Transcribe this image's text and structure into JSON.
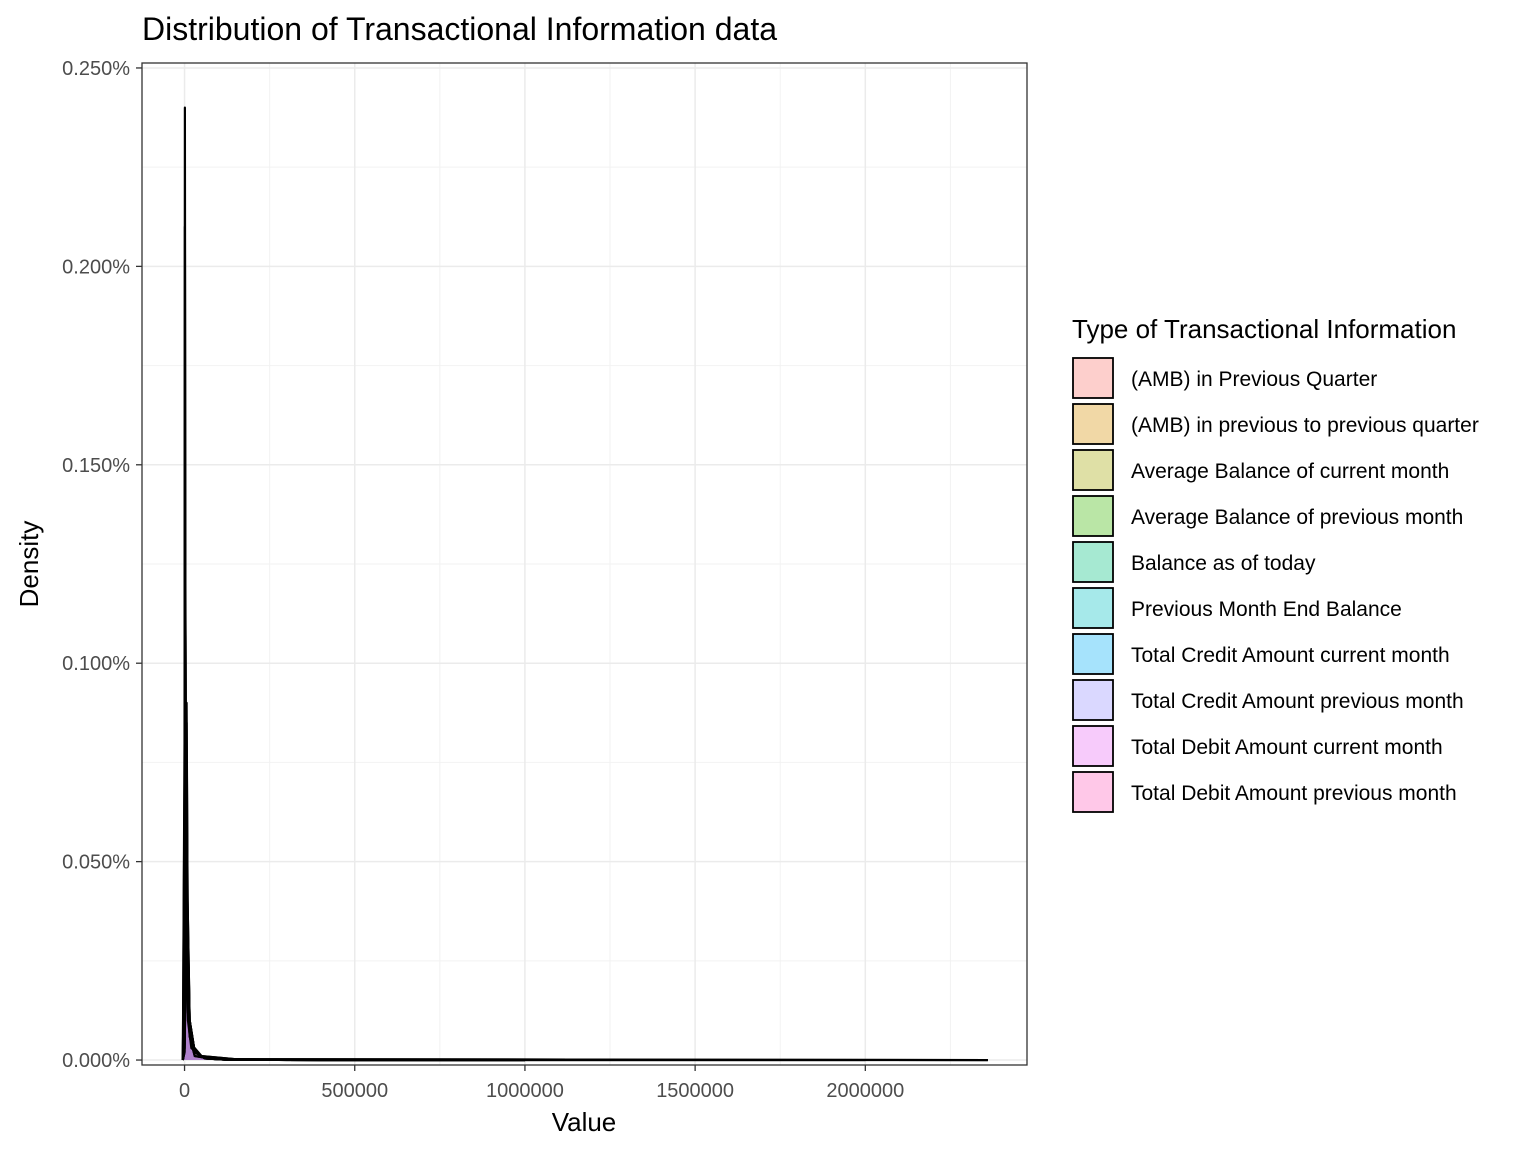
{
  "chart_data": {
    "type": "area",
    "title": "Distribution of Transactional Information data",
    "xlabel": "Value",
    "ylabel": "Density",
    "xlim": [
      -125000,
      2475000
    ],
    "ylim": [
      -1.25e-05,
      0.0025125
    ],
    "x_ticks": [
      0,
      500000,
      1000000,
      1500000,
      2000000
    ],
    "x_tick_labels": [
      "0",
      "500000",
      "1000000",
      "1500000",
      "2000000"
    ],
    "y_ticks": [
      0,
      0.0005,
      0.001,
      0.0015,
      0.002,
      0.0025
    ],
    "y_tick_labels": [
      "0.000%",
      "0.050%",
      "0.100%",
      "0.150%",
      "0.200%",
      "0.250%"
    ],
    "grid": true,
    "legend_position": "right",
    "legend_title": "Type of Transactional Information",
    "series": [
      {
        "name": "(AMB) in Previous Quarter",
        "color": "#F8766D",
        "points": [
          [
            -5000,
            0
          ],
          [
            0,
            2e-05
          ],
          [
            3000,
            0.0002
          ],
          [
            6000,
            0.0006
          ],
          [
            9000,
            0.0003
          ],
          [
            15000,
            8e-05
          ],
          [
            30000,
            2e-05
          ],
          [
            60000,
            4e-06
          ],
          [
            120000,
            1e-06
          ],
          [
            400000,
            0
          ],
          [
            1000000,
            0
          ]
        ]
      },
      {
        "name": "(AMB) in previous to previous quarter",
        "color": "#D89000",
        "points": [
          [
            -5000,
            0
          ],
          [
            0,
            2e-05
          ],
          [
            3000,
            0.0002
          ],
          [
            6000,
            0.00055
          ],
          [
            9000,
            0.0003
          ],
          [
            15000,
            8e-05
          ],
          [
            30000,
            2e-05
          ],
          [
            60000,
            4e-06
          ],
          [
            120000,
            1e-06
          ],
          [
            400000,
            0
          ],
          [
            1000000,
            0
          ]
        ]
      },
      {
        "name": "Average Balance of current month",
        "color": "#A3A500",
        "points": [
          [
            -5000,
            0
          ],
          [
            0,
            3e-05
          ],
          [
            3000,
            0.0003
          ],
          [
            6000,
            0.0007
          ],
          [
            9000,
            0.00035
          ],
          [
            15000,
            0.0001
          ],
          [
            30000,
            2e-05
          ],
          [
            60000,
            4e-06
          ],
          [
            120000,
            1e-06
          ],
          [
            400000,
            0
          ],
          [
            1000000,
            0
          ]
        ]
      },
      {
        "name": "Average Balance of previous month",
        "color": "#39B600",
        "points": [
          [
            -5000,
            0
          ],
          [
            0,
            3e-05
          ],
          [
            3000,
            0.0003
          ],
          [
            6000,
            0.00068
          ],
          [
            9000,
            0.00034
          ],
          [
            15000,
            0.0001
          ],
          [
            30000,
            2e-05
          ],
          [
            60000,
            4e-06
          ],
          [
            120000,
            1e-06
          ],
          [
            400000,
            0
          ],
          [
            1000000,
            0
          ]
        ]
      },
      {
        "name": "Balance as of today",
        "color": "#00BF7D",
        "points": [
          [
            -5000,
            0
          ],
          [
            0,
            4e-05
          ],
          [
            3000,
            0.0004
          ],
          [
            6000,
            0.0009
          ],
          [
            9000,
            0.0004
          ],
          [
            15000,
            0.0001
          ],
          [
            30000,
            2e-05
          ],
          [
            60000,
            4e-06
          ],
          [
            120000,
            1e-06
          ],
          [
            400000,
            0
          ],
          [
            1000000,
            0
          ]
        ]
      },
      {
        "name": "Previous Month End Balance",
        "color": "#00BFC4",
        "points": [
          [
            -5000,
            0
          ],
          [
            0,
            4e-05
          ],
          [
            3000,
            0.0004
          ],
          [
            6000,
            0.00085
          ],
          [
            9000,
            0.0004
          ],
          [
            15000,
            0.0001
          ],
          [
            30000,
            2e-05
          ],
          [
            60000,
            4e-06
          ],
          [
            120000,
            1e-06
          ],
          [
            400000,
            0
          ],
          [
            1000000,
            0
          ]
        ]
      },
      {
        "name": "Total Credit Amount current month",
        "color": "#00B0F6",
        "points": [
          [
            -5000,
            0
          ],
          [
            0,
            0.0004
          ],
          [
            2000,
            0.0013
          ],
          [
            4000,
            0.0006
          ],
          [
            8000,
            0.0002
          ],
          [
            15000,
            6e-05
          ],
          [
            30000,
            1e-05
          ],
          [
            80000,
            3e-06
          ],
          [
            300000,
            0
          ],
          [
            2000000,
            0
          ]
        ]
      },
      {
        "name": "Total Credit Amount previous month",
        "color": "#9590FF",
        "points": [
          [
            -5000,
            0
          ],
          [
            0,
            0.0004
          ],
          [
            2000,
            0.00125
          ],
          [
            4000,
            0.0006
          ],
          [
            8000,
            0.0002
          ],
          [
            15000,
            6e-05
          ],
          [
            30000,
            1e-05
          ],
          [
            80000,
            3e-06
          ],
          [
            300000,
            0
          ],
          [
            2360000,
            0
          ]
        ]
      },
      {
        "name": "Total Debit Amount current month",
        "color": "#E76BF3",
        "points": [
          [
            -5000,
            0
          ],
          [
            0,
            0.0008
          ],
          [
            1000,
            0.0024
          ],
          [
            2500,
            0.0012
          ],
          [
            5000,
            0.0004
          ],
          [
            10000,
            0.00012
          ],
          [
            20000,
            4e-05
          ],
          [
            50000,
            1e-05
          ],
          [
            150000,
            2e-06
          ],
          [
            2360000,
            0
          ]
        ]
      },
      {
        "name": "Total Debit Amount previous month",
        "color": "#FF62BC",
        "points": [
          [
            -5000,
            0
          ],
          [
            0,
            0.0007
          ],
          [
            1000,
            0.0021
          ],
          [
            2500,
            0.0011
          ],
          [
            5000,
            0.00035
          ],
          [
            10000,
            0.0001
          ],
          [
            20000,
            3e-05
          ],
          [
            50000,
            1e-05
          ],
          [
            150000,
            2e-06
          ],
          [
            2360000,
            0
          ]
        ]
      }
    ]
  }
}
